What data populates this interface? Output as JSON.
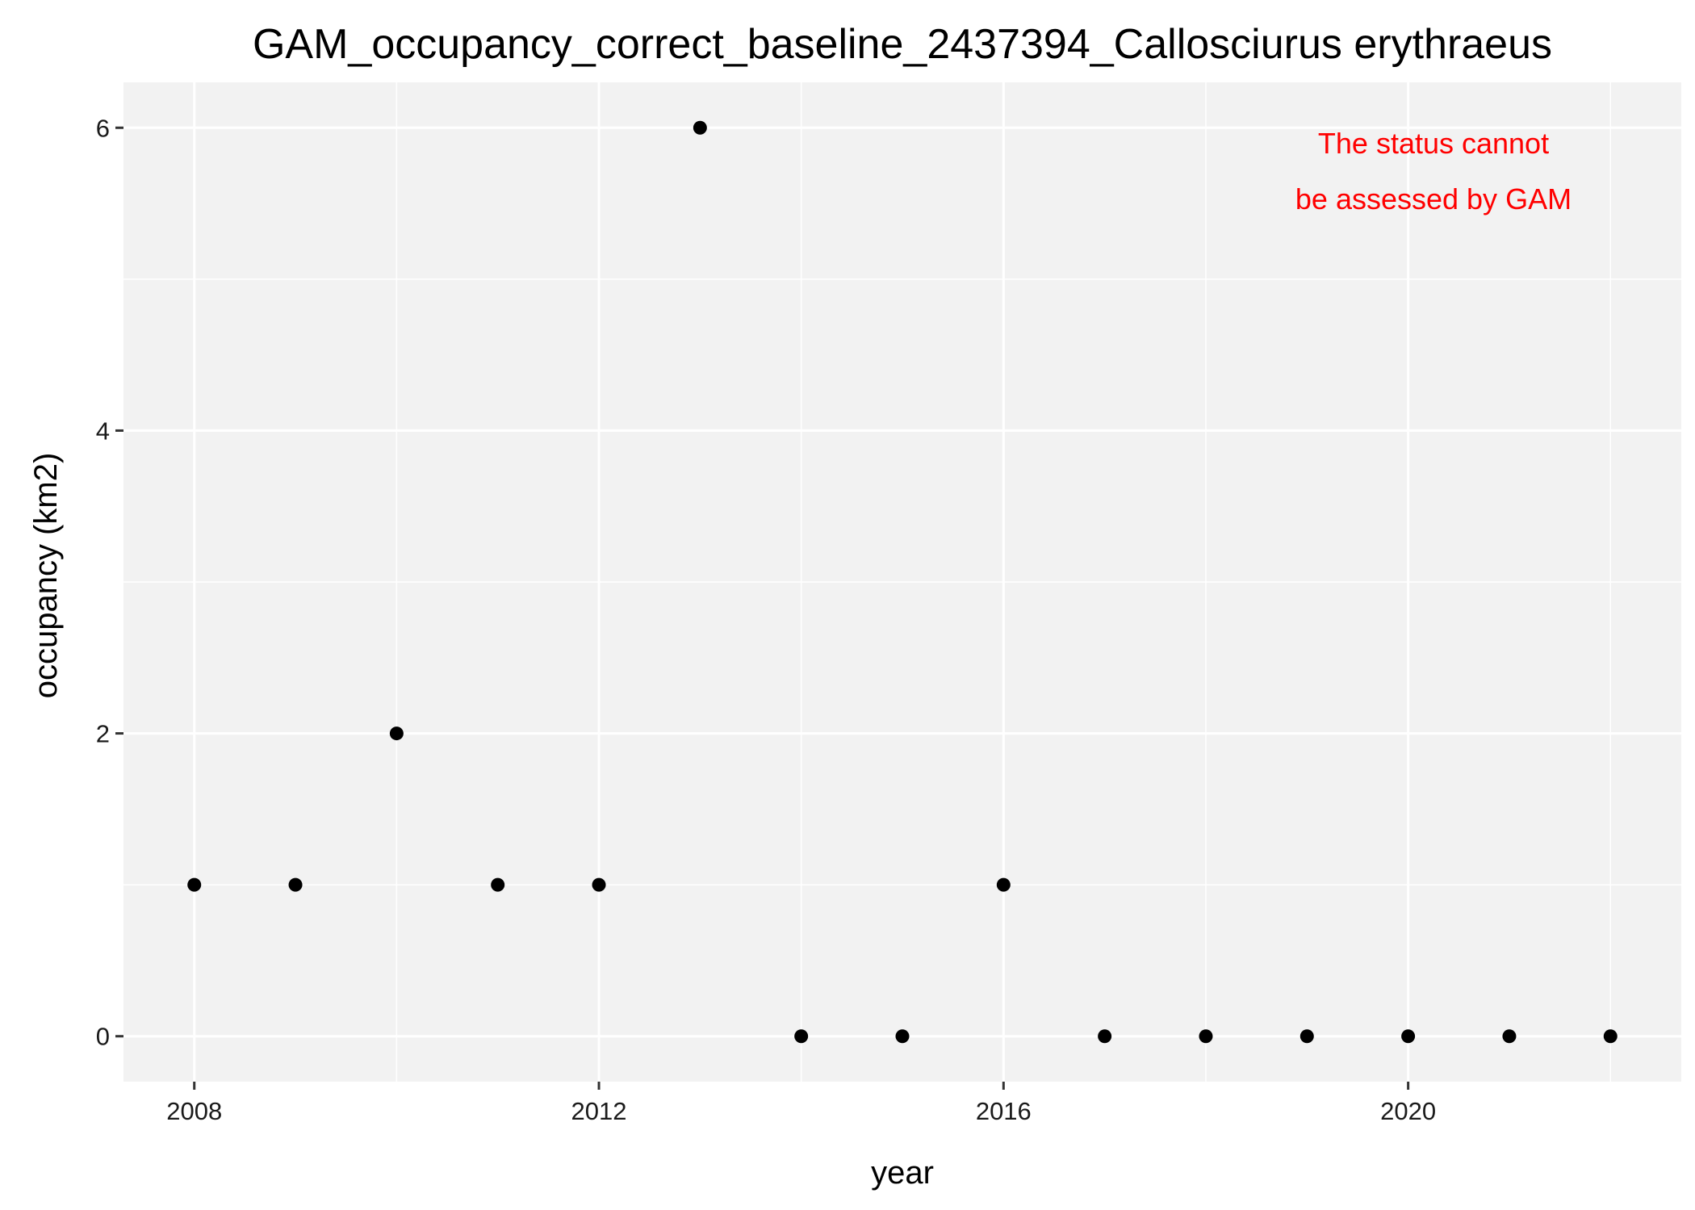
{
  "chart_data": {
    "type": "scatter",
    "title": "GAM_occupancy_correct_baseline_2437394_Callosciurus erythraeus",
    "xlabel": "year",
    "ylabel": "occupancy (km2)",
    "x": [
      2008,
      2009,
      2010,
      2011,
      2012,
      2013,
      2014,
      2015,
      2016,
      2017,
      2018,
      2019,
      2020,
      2021,
      2022
    ],
    "y": [
      1,
      1,
      2,
      1,
      1,
      6,
      0,
      0,
      1,
      0,
      0,
      0,
      0,
      0,
      0
    ],
    "xlim": [
      2007.3,
      2022.7
    ],
    "ylim": [
      -0.3,
      6.3
    ],
    "x_ticks": [
      2008,
      2012,
      2016,
      2020
    ],
    "x_tick_labels": [
      "2008",
      "2012",
      "2016",
      "2020"
    ],
    "x_minor_ticks": [
      2010,
      2014,
      2018,
      2022
    ],
    "y_ticks": [
      0,
      2,
      4,
      6
    ],
    "y_tick_labels": [
      "0",
      "2",
      "4",
      "6"
    ],
    "y_minor_ticks": [
      1,
      3,
      5
    ],
    "grid": true,
    "annotation": {
      "lines": [
        "The status cannot",
        "be assessed by GAM"
      ],
      "color": "#ff0000",
      "placement": "top-right"
    },
    "colors": {
      "panel_background": "#f2f2f2",
      "grid": "#ffffff",
      "point": "#000000",
      "axis_tick": "#333333"
    }
  }
}
